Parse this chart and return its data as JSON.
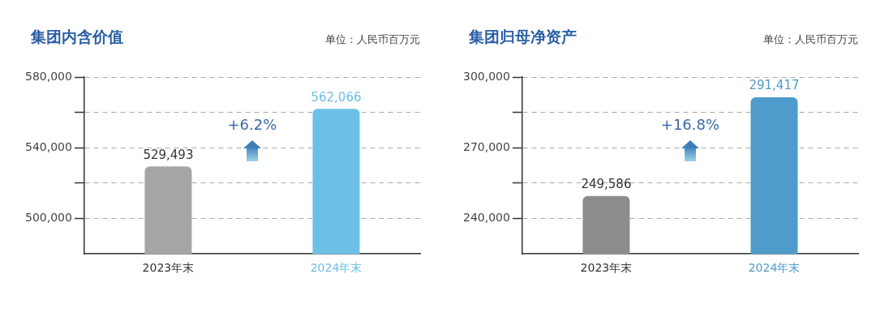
{
  "chart_data": [
    {
      "type": "bar",
      "title": "集团内含价值",
      "subtitle": "单位：人民币百万元",
      "categories": [
        "2023年末",
        "2024年末"
      ],
      "values": [
        529493,
        562066
      ],
      "colors": [
        "#a6a6a6",
        "#6cc0e5"
      ],
      "ylim": [
        480000,
        580000
      ],
      "yticks": [
        {
          "value": 500000,
          "label": "500,000"
        },
        {
          "value": 520000,
          "label": null
        },
        {
          "value": 540000,
          "label": "540,000"
        },
        {
          "value": 560000,
          "label": null
        },
        {
          "value": 580000,
          "label": "580,000"
        }
      ],
      "grid": "y",
      "legend": false,
      "value_labels": [
        "529,493",
        "562,066"
      ],
      "annotations": [
        "+6.2%"
      ]
    },
    {
      "type": "bar",
      "title": "集团归母净资产",
      "subtitle": "单位：人民币百万元",
      "categories": [
        "2023年末",
        "2024年末"
      ],
      "values": [
        249586,
        291417
      ],
      "colors": [
        "#8c8c8c",
        "#4f9bcb"
      ],
      "ylim": [
        225000,
        300000
      ],
      "yticks": [
        {
          "value": 240000,
          "label": "240,000"
        },
        {
          "value": 255000,
          "label": null
        },
        {
          "value": 270000,
          "label": "270,000"
        },
        {
          "value": 285000,
          "label": null
        },
        {
          "value": 300000,
          "label": "300,000"
        }
      ],
      "grid": "y",
      "legend": false,
      "value_labels": [
        "249,586",
        "291,417"
      ],
      "annotations": [
        "+16.8%"
      ]
    }
  ]
}
